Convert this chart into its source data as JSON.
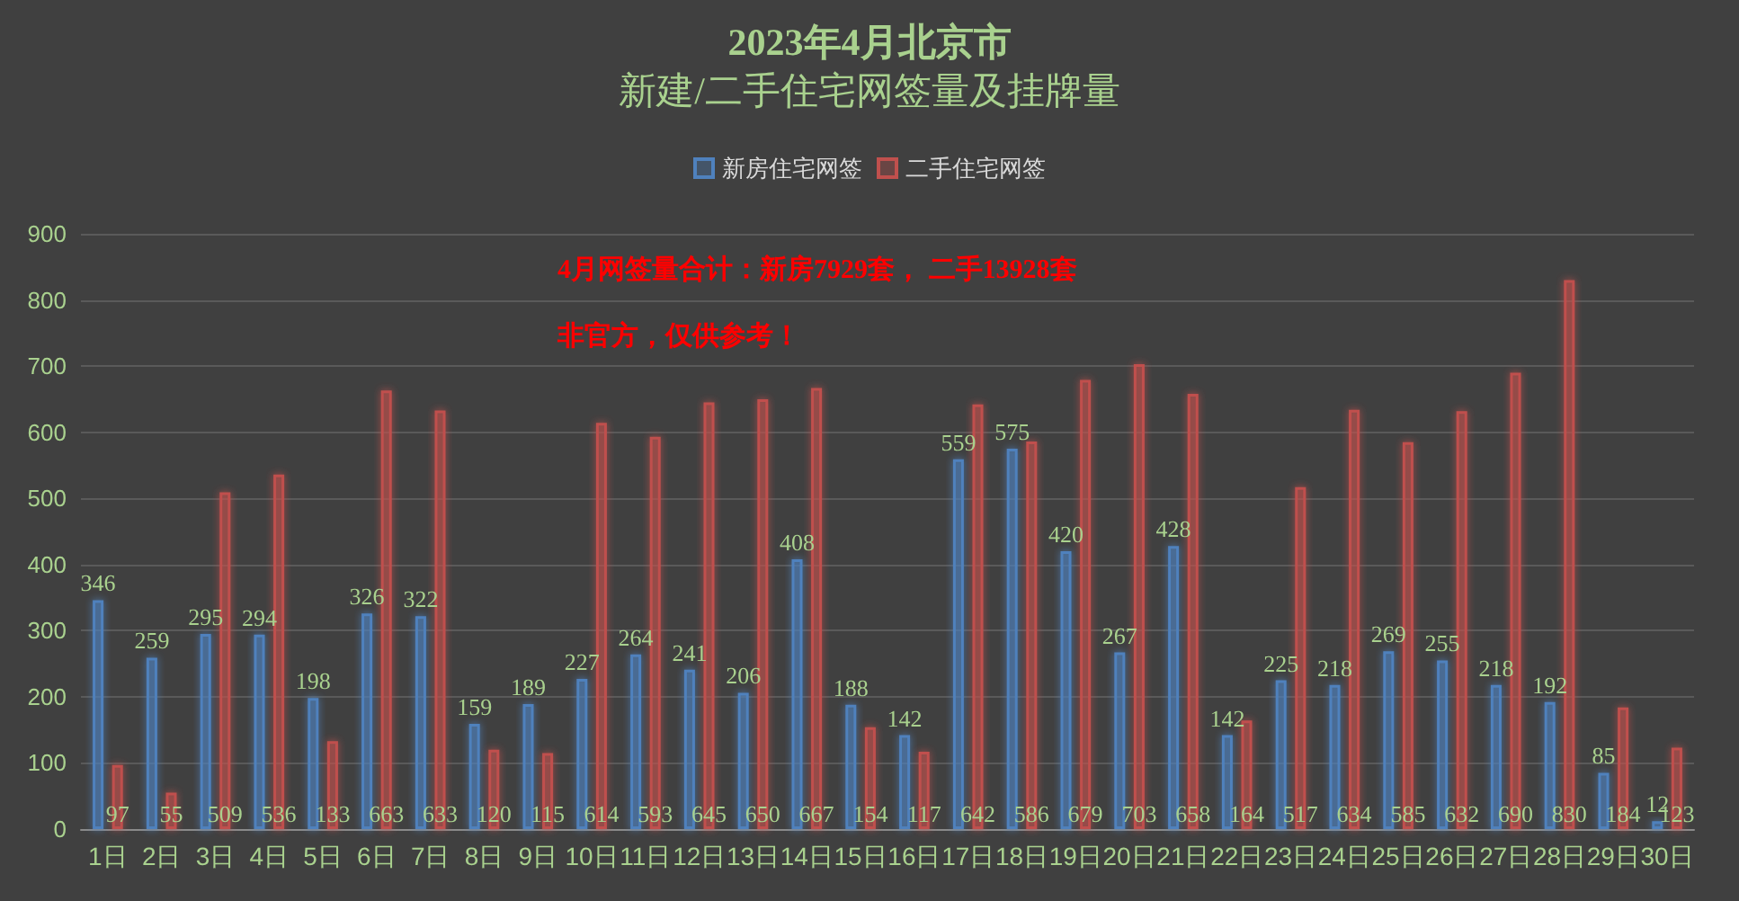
{
  "chart_data": {
    "type": "bar",
    "title": "2023年4月北京市",
    "subtitle": "新建/二手住宅网签量及挂牌量",
    "categories": [
      "1日",
      "2日",
      "3日",
      "4日",
      "5日",
      "6日",
      "7日",
      "8日",
      "9日",
      "10日",
      "11日",
      "12日",
      "13日",
      "14日",
      "15日",
      "16日",
      "17日",
      "18日",
      "19日",
      "20日",
      "21日",
      "22日",
      "23日",
      "24日",
      "25日",
      "26日",
      "27日",
      "28日",
      "29日",
      "30日"
    ],
    "series": [
      {
        "name": "新房住宅网签",
        "color": "#4f81bd",
        "values": [
          346,
          259,
          295,
          294,
          198,
          326,
          322,
          159,
          189,
          227,
          264,
          241,
          206,
          408,
          188,
          142,
          559,
          575,
          420,
          267,
          428,
          142,
          225,
          218,
          269,
          255,
          218,
          192,
          85,
          12
        ]
      },
      {
        "name": "二手住宅网签",
        "color": "#c0504d",
        "values": [
          97,
          55,
          509,
          536,
          133,
          663,
          633,
          120,
          115,
          614,
          593,
          645,
          650,
          667,
          154,
          117,
          642,
          586,
          679,
          703,
          658,
          164,
          517,
          634,
          585,
          632,
          690,
          830,
          184,
          123
        ]
      }
    ],
    "annotations": [
      "4月网签量合计：新房7929套， 二手13928套",
      "非官方，仅供参考！"
    ],
    "ylim": [
      0,
      900
    ],
    "yticks": [
      0,
      100,
      200,
      300,
      400,
      500,
      600,
      700,
      800,
      900
    ],
    "grid": "y",
    "legend": "top",
    "data_labels": true
  }
}
